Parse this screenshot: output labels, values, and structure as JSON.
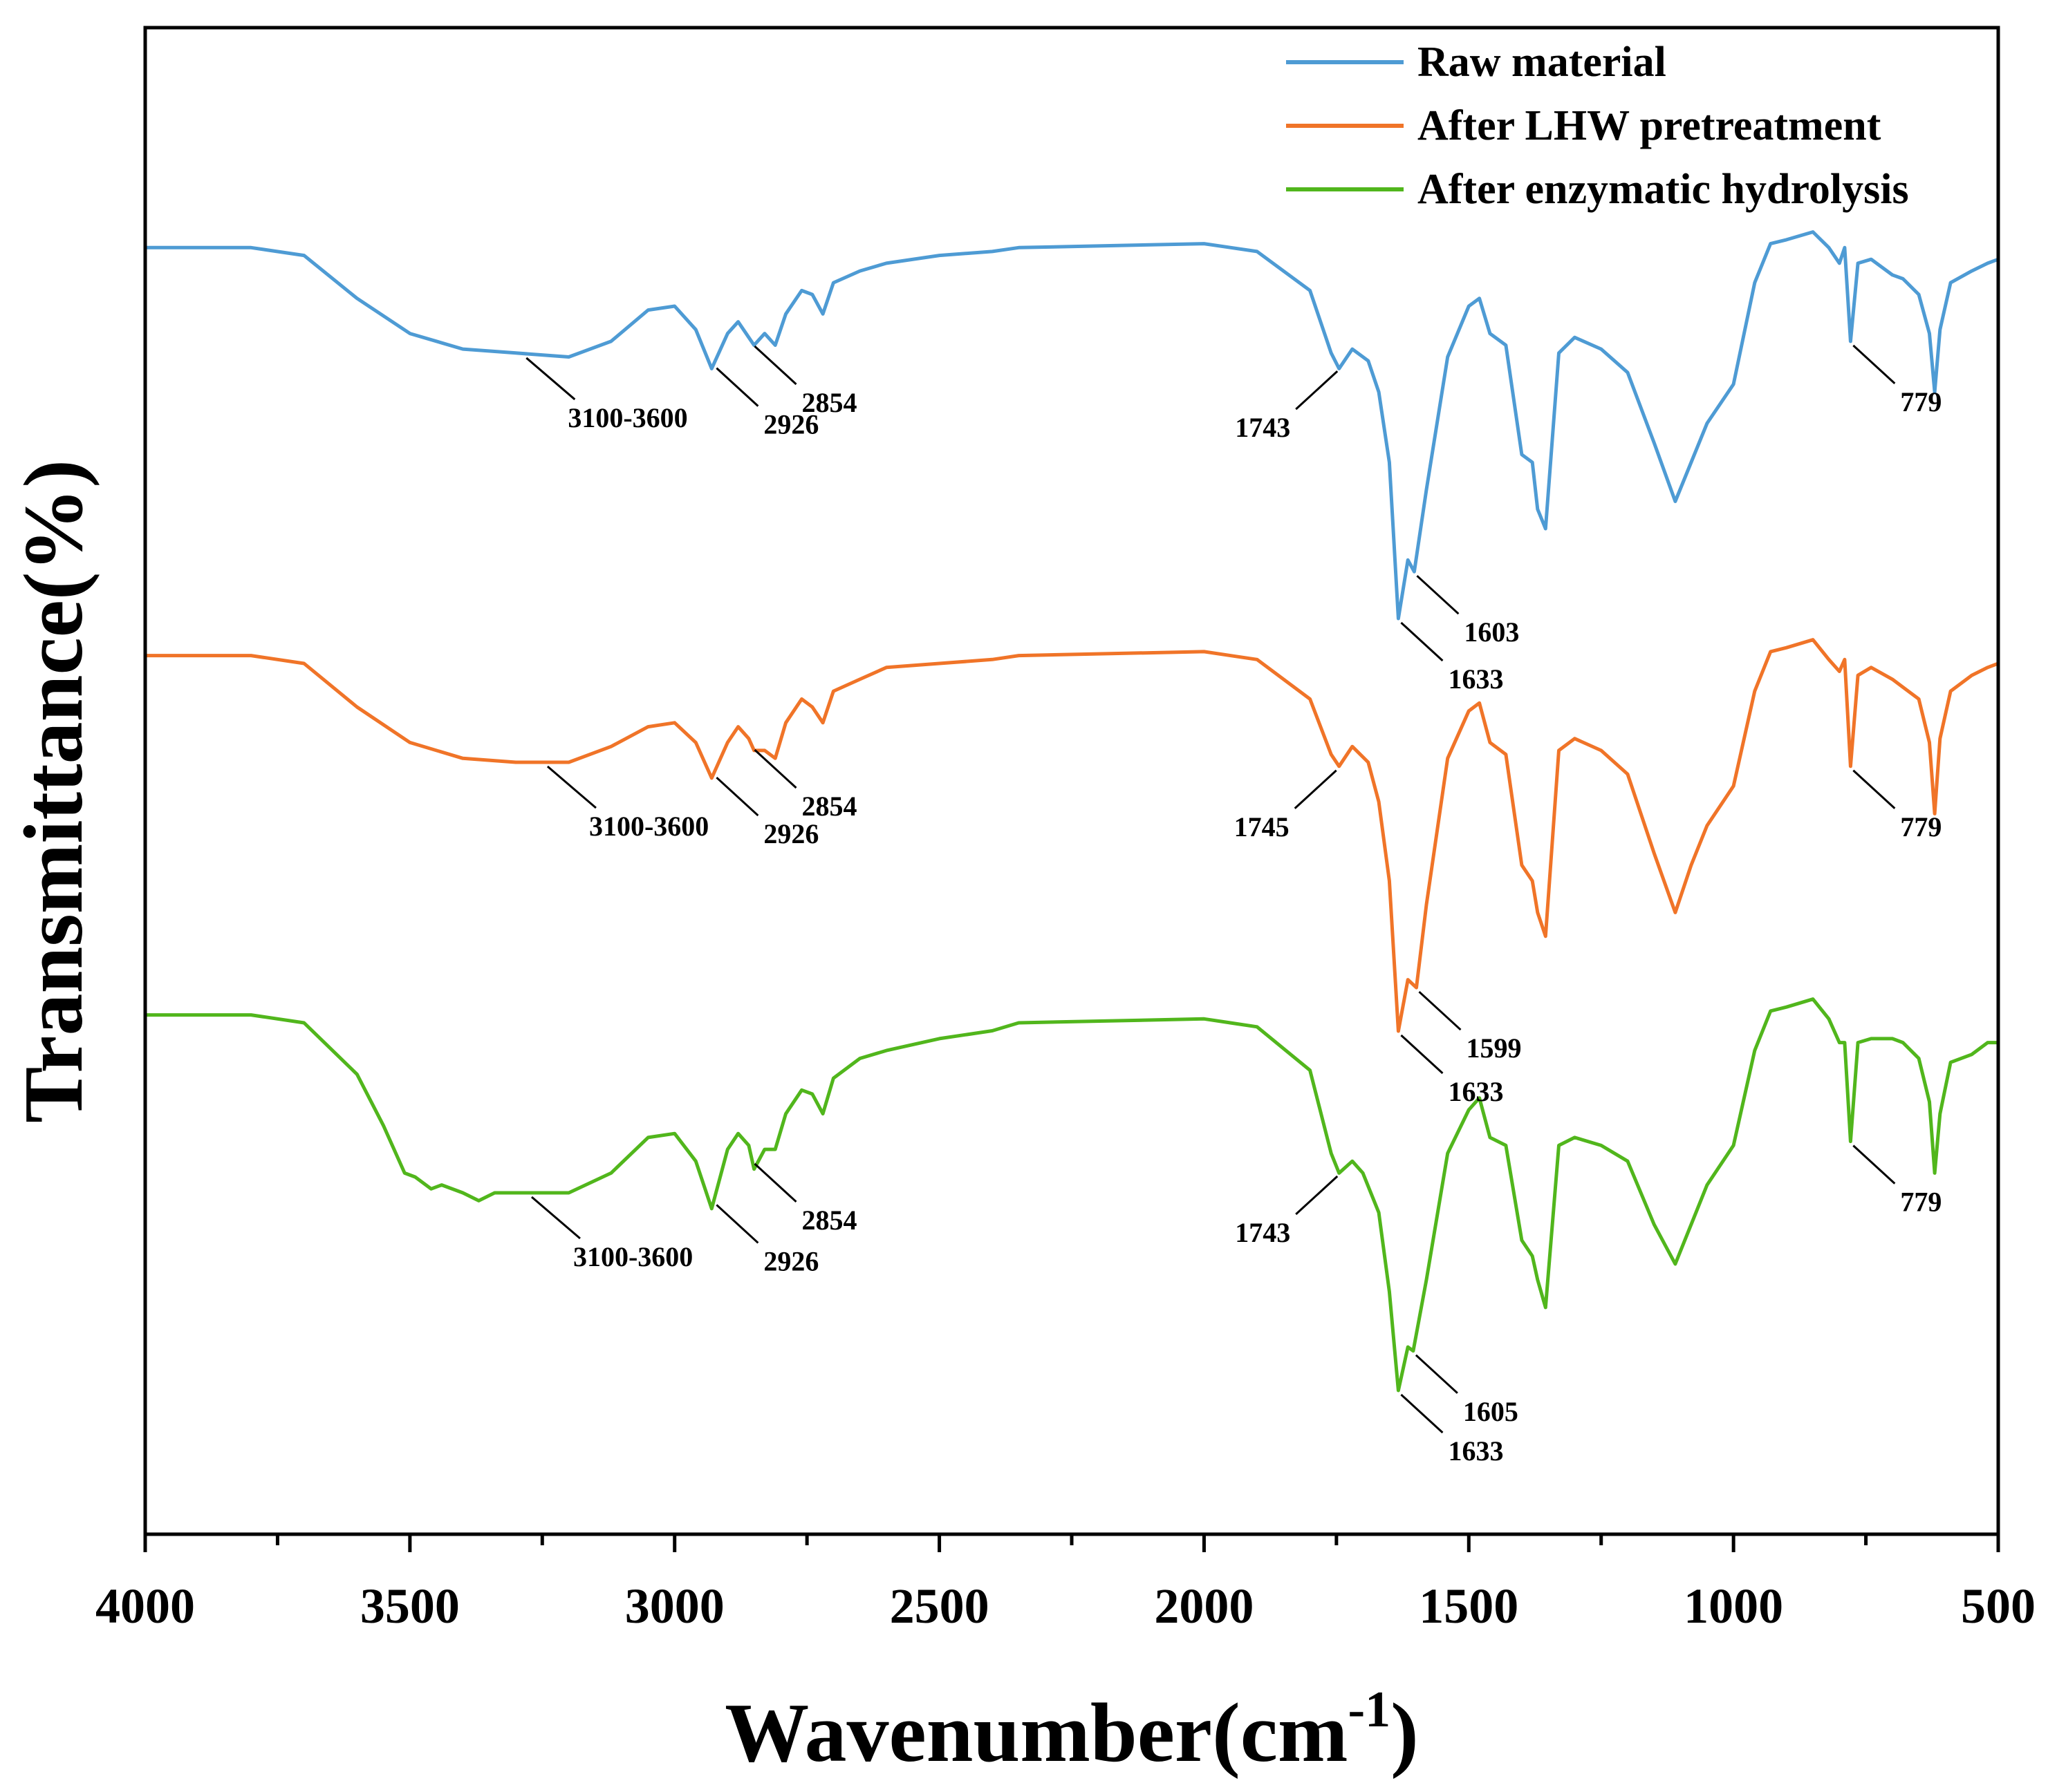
{
  "chart_data": {
    "type": "line",
    "xlabel_main": "Wavenumber(cm",
    "xlabel_sup": "-1",
    "xlabel_close": ")",
    "ylabel": "Transmittance(%)",
    "xlim": [
      4000,
      500
    ],
    "x_inverted": true,
    "y_ticks_shown": false,
    "grid": false,
    "legend_position": "top-right",
    "x_ticks": [
      "4000",
      "3500",
      "3000",
      "2500",
      "2000",
      "1500",
      "1000",
      "500"
    ],
    "series": [
      {
        "name": "Raw material",
        "color": "#4e9bd4",
        "points": [
          [
            4000,
            0.05
          ],
          [
            3800,
            0.05
          ],
          [
            3700,
            0.07
          ],
          [
            3600,
            0.18
          ],
          [
            3500,
            0.27
          ],
          [
            3400,
            0.31
          ],
          [
            3300,
            0.32
          ],
          [
            3200,
            0.33
          ],
          [
            3120,
            0.29
          ],
          [
            3050,
            0.21
          ],
          [
            3000,
            0.2
          ],
          [
            2960,
            0.26
          ],
          [
            2930,
            0.36
          ],
          [
            2900,
            0.27
          ],
          [
            2880,
            0.24
          ],
          [
            2860,
            0.28
          ],
          [
            2850,
            0.3
          ],
          [
            2830,
            0.27
          ],
          [
            2810,
            0.3
          ],
          [
            2790,
            0.22
          ],
          [
            2760,
            0.16
          ],
          [
            2740,
            0.17
          ],
          [
            2720,
            0.22
          ],
          [
            2700,
            0.14
          ],
          [
            2650,
            0.11
          ],
          [
            2600,
            0.09
          ],
          [
            2500,
            0.07
          ],
          [
            2400,
            0.06
          ],
          [
            2350,
            0.05
          ],
          [
            2000,
            0.04
          ],
          [
            1900,
            0.06
          ],
          [
            1800,
            0.16
          ],
          [
            1760,
            0.32
          ],
          [
            1745,
            0.36
          ],
          [
            1720,
            0.31
          ],
          [
            1690,
            0.34
          ],
          [
            1670,
            0.42
          ],
          [
            1650,
            0.6
          ],
          [
            1633,
            1.0
          ],
          [
            1615,
            0.85
          ],
          [
            1603,
            0.88
          ],
          [
            1580,
            0.67
          ],
          [
            1540,
            0.33
          ],
          [
            1500,
            0.2
          ],
          [
            1480,
            0.18
          ],
          [
            1460,
            0.27
          ],
          [
            1430,
            0.3
          ],
          [
            1400,
            0.58
          ],
          [
            1380,
            0.6
          ],
          [
            1370,
            0.72
          ],
          [
            1355,
            0.77
          ],
          [
            1330,
            0.32
          ],
          [
            1300,
            0.28
          ],
          [
            1250,
            0.31
          ],
          [
            1200,
            0.37
          ],
          [
            1150,
            0.55
          ],
          [
            1110,
            0.7
          ],
          [
            1080,
            0.6
          ],
          [
            1050,
            0.5
          ],
          [
            1000,
            0.4
          ],
          [
            960,
            0.14
          ],
          [
            930,
            0.04
          ],
          [
            900,
            0.03
          ],
          [
            850,
            0.01
          ],
          [
            820,
            0.05
          ],
          [
            800,
            0.09
          ],
          [
            790,
            0.05
          ],
          [
            779,
            0.29
          ],
          [
            765,
            0.09
          ],
          [
            740,
            0.08
          ],
          [
            700,
            0.12
          ],
          [
            680,
            0.13
          ],
          [
            650,
            0.17
          ],
          [
            630,
            0.27
          ],
          [
            620,
            0.42
          ],
          [
            610,
            0.26
          ],
          [
            590,
            0.14
          ],
          [
            550,
            0.11
          ],
          [
            520,
            0.09
          ],
          [
            500,
            0.08
          ]
        ]
      },
      {
        "name": "After LHW pretreatment",
        "color": "#f07428",
        "points": [
          [
            4000,
            0.05
          ],
          [
            3800,
            0.05
          ],
          [
            3700,
            0.07
          ],
          [
            3600,
            0.18
          ],
          [
            3500,
            0.27
          ],
          [
            3400,
            0.31
          ],
          [
            3300,
            0.32
          ],
          [
            3200,
            0.32
          ],
          [
            3120,
            0.28
          ],
          [
            3050,
            0.23
          ],
          [
            3000,
            0.22
          ],
          [
            2960,
            0.27
          ],
          [
            2930,
            0.36
          ],
          [
            2900,
            0.27
          ],
          [
            2880,
            0.23
          ],
          [
            2860,
            0.26
          ],
          [
            2850,
            0.29
          ],
          [
            2830,
            0.29
          ],
          [
            2810,
            0.31
          ],
          [
            2790,
            0.22
          ],
          [
            2760,
            0.16
          ],
          [
            2740,
            0.18
          ],
          [
            2720,
            0.22
          ],
          [
            2700,
            0.14
          ],
          [
            2650,
            0.11
          ],
          [
            2600,
            0.08
          ],
          [
            2500,
            0.07
          ],
          [
            2400,
            0.06
          ],
          [
            2350,
            0.05
          ],
          [
            2000,
            0.04
          ],
          [
            1900,
            0.06
          ],
          [
            1800,
            0.16
          ],
          [
            1760,
            0.3
          ],
          [
            1745,
            0.33
          ],
          [
            1720,
            0.28
          ],
          [
            1690,
            0.32
          ],
          [
            1670,
            0.42
          ],
          [
            1650,
            0.62
          ],
          [
            1633,
            1.0
          ],
          [
            1615,
            0.87
          ],
          [
            1599,
            0.89
          ],
          [
            1580,
            0.68
          ],
          [
            1540,
            0.31
          ],
          [
            1500,
            0.19
          ],
          [
            1480,
            0.17
          ],
          [
            1460,
            0.27
          ],
          [
            1430,
            0.3
          ],
          [
            1400,
            0.58
          ],
          [
            1380,
            0.62
          ],
          [
            1370,
            0.7
          ],
          [
            1355,
            0.76
          ],
          [
            1330,
            0.29
          ],
          [
            1300,
            0.26
          ],
          [
            1250,
            0.29
          ],
          [
            1200,
            0.35
          ],
          [
            1150,
            0.55
          ],
          [
            1110,
            0.7
          ],
          [
            1080,
            0.58
          ],
          [
            1050,
            0.48
          ],
          [
            1000,
            0.38
          ],
          [
            960,
            0.14
          ],
          [
            930,
            0.04
          ],
          [
            900,
            0.03
          ],
          [
            850,
            0.01
          ],
          [
            820,
            0.06
          ],
          [
            800,
            0.09
          ],
          [
            790,
            0.06
          ],
          [
            779,
            0.33
          ],
          [
            765,
            0.1
          ],
          [
            740,
            0.08
          ],
          [
            700,
            0.11
          ],
          [
            680,
            0.13
          ],
          [
            650,
            0.16
          ],
          [
            630,
            0.27
          ],
          [
            620,
            0.45
          ],
          [
            610,
            0.26
          ],
          [
            590,
            0.14
          ],
          [
            550,
            0.1
          ],
          [
            520,
            0.08
          ],
          [
            500,
            0.07
          ]
        ]
      },
      {
        "name": "After enzymatic hydrolysis",
        "color": "#51b61c",
        "points": [
          [
            4000,
            0.05
          ],
          [
            3800,
            0.05
          ],
          [
            3700,
            0.07
          ],
          [
            3600,
            0.2
          ],
          [
            3550,
            0.33
          ],
          [
            3510,
            0.45
          ],
          [
            3490,
            0.46
          ],
          [
            3460,
            0.49
          ],
          [
            3440,
            0.48
          ],
          [
            3400,
            0.5
          ],
          [
            3370,
            0.52
          ],
          [
            3340,
            0.5
          ],
          [
            3300,
            0.5
          ],
          [
            3200,
            0.5
          ],
          [
            3120,
            0.45
          ],
          [
            3050,
            0.36
          ],
          [
            3000,
            0.35
          ],
          [
            2960,
            0.42
          ],
          [
            2930,
            0.54
          ],
          [
            2900,
            0.39
          ],
          [
            2880,
            0.35
          ],
          [
            2860,
            0.38
          ],
          [
            2850,
            0.44
          ],
          [
            2830,
            0.39
          ],
          [
            2810,
            0.39
          ],
          [
            2790,
            0.3
          ],
          [
            2760,
            0.24
          ],
          [
            2740,
            0.25
          ],
          [
            2720,
            0.3
          ],
          [
            2700,
            0.21
          ],
          [
            2650,
            0.16
          ],
          [
            2600,
            0.14
          ],
          [
            2500,
            0.11
          ],
          [
            2400,
            0.09
          ],
          [
            2350,
            0.07
          ],
          [
            2000,
            0.06
          ],
          [
            1900,
            0.08
          ],
          [
            1800,
            0.19
          ],
          [
            1760,
            0.4
          ],
          [
            1745,
            0.45
          ],
          [
            1720,
            0.42
          ],
          [
            1700,
            0.45
          ],
          [
            1670,
            0.55
          ],
          [
            1650,
            0.75
          ],
          [
            1633,
            1.0
          ],
          [
            1615,
            0.89
          ],
          [
            1605,
            0.9
          ],
          [
            1580,
            0.72
          ],
          [
            1540,
            0.4
          ],
          [
            1500,
            0.29
          ],
          [
            1480,
            0.26
          ],
          [
            1460,
            0.36
          ],
          [
            1430,
            0.38
          ],
          [
            1400,
            0.62
          ],
          [
            1380,
            0.66
          ],
          [
            1370,
            0.72
          ],
          [
            1355,
            0.79
          ],
          [
            1330,
            0.38
          ],
          [
            1300,
            0.36
          ],
          [
            1250,
            0.38
          ],
          [
            1200,
            0.42
          ],
          [
            1150,
            0.58
          ],
          [
            1110,
            0.68
          ],
          [
            1080,
            0.58
          ],
          [
            1050,
            0.48
          ],
          [
            1000,
            0.38
          ],
          [
            960,
            0.14
          ],
          [
            930,
            0.04
          ],
          [
            900,
            0.03
          ],
          [
            850,
            0.01
          ],
          [
            820,
            0.06
          ],
          [
            800,
            0.12
          ],
          [
            790,
            0.12
          ],
          [
            779,
            0.37
          ],
          [
            765,
            0.12
          ],
          [
            740,
            0.11
          ],
          [
            700,
            0.11
          ],
          [
            680,
            0.12
          ],
          [
            650,
            0.16
          ],
          [
            630,
            0.27
          ],
          [
            620,
            0.45
          ],
          [
            610,
            0.3
          ],
          [
            590,
            0.17
          ],
          [
            550,
            0.15
          ],
          [
            520,
            0.12
          ],
          [
            500,
            0.12
          ]
        ]
      }
    ],
    "annotations": [
      {
        "series": 0,
        "text": "3100-3600",
        "peak": 3280
      },
      {
        "series": 0,
        "text": "2926",
        "peak": 2926
      },
      {
        "series": 0,
        "text": "2854",
        "peak": 2854
      },
      {
        "series": 0,
        "text": "1743",
        "peak": 1743
      },
      {
        "series": 0,
        "text": "1603",
        "peak": 1603
      },
      {
        "series": 0,
        "text": "1633",
        "peak": 1633
      },
      {
        "series": 0,
        "text": "779",
        "peak": 779
      },
      {
        "series": 1,
        "text": "3100-3600",
        "peak": 3240
      },
      {
        "series": 1,
        "text": "2926",
        "peak": 2926
      },
      {
        "series": 1,
        "text": "2854",
        "peak": 2854
      },
      {
        "series": 1,
        "text": "1745",
        "peak": 1745
      },
      {
        "series": 1,
        "text": "1599",
        "peak": 1599
      },
      {
        "series": 1,
        "text": "1633",
        "peak": 1633
      },
      {
        "series": 1,
        "text": "779",
        "peak": 779
      },
      {
        "series": 2,
        "text": "3100-3600",
        "peak": 3270
      },
      {
        "series": 2,
        "text": "2926",
        "peak": 2926
      },
      {
        "series": 2,
        "text": "2854",
        "peak": 2854
      },
      {
        "series": 2,
        "text": "1743",
        "peak": 1743
      },
      {
        "series": 2,
        "text": "1605",
        "peak": 1605
      },
      {
        "series": 2,
        "text": "1633",
        "peak": 1633
      },
      {
        "series": 2,
        "text": "779",
        "peak": 779
      }
    ]
  }
}
